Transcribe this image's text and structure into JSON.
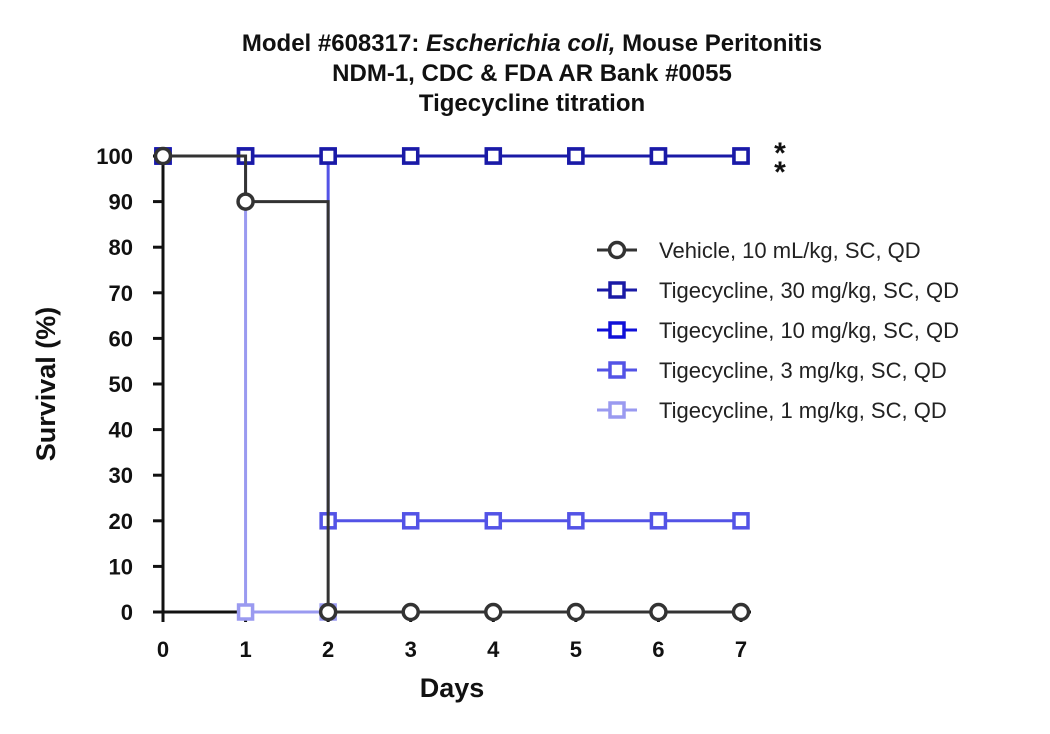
{
  "chart_data": {
    "type": "line",
    "step": true,
    "title": {
      "line1_prefix": "Model #608317: ",
      "line1_italic": "Escherichia coli,",
      "line1_suffix": " Mouse Peritonitis",
      "line2": "NDM-1, CDC & FDA AR Bank #0055",
      "line3": "Tigecycline titration"
    },
    "xlabel": "Days",
    "ylabel": "Survival (%)",
    "xlim": [
      0,
      7
    ],
    "ylim": [
      0,
      100
    ],
    "xticks": [
      0,
      1,
      2,
      3,
      4,
      5,
      6,
      7
    ],
    "yticks": [
      0,
      10,
      20,
      30,
      40,
      50,
      60,
      70,
      80,
      90,
      100
    ],
    "grid": false,
    "legend_position": "right",
    "significance_marks": [
      "*",
      "*"
    ],
    "series": [
      {
        "name": "Vehicle, 10 mL/kg, SC, QD",
        "color": "#333333",
        "marker": "circle",
        "x": [
          0,
          1,
          2,
          3,
          4,
          5,
          6,
          7
        ],
        "y": [
          100,
          90,
          0,
          0,
          0,
          0,
          0,
          0
        ]
      },
      {
        "name": "Tigecycline, 30 mg/kg, SC, QD",
        "color": "#1a1aa6",
        "marker": "square",
        "x": [
          0,
          1,
          2,
          3,
          4,
          5,
          6,
          7
        ],
        "y": [
          100,
          100,
          100,
          100,
          100,
          100,
          100,
          100
        ]
      },
      {
        "name": "Tigecycline, 10 mg/kg, SC, QD",
        "color": "#1010d8",
        "marker": "square",
        "x": [
          0,
          1,
          2,
          3,
          4,
          5,
          6,
          7
        ],
        "y": [
          100,
          100,
          100,
          100,
          100,
          100,
          100,
          100
        ]
      },
      {
        "name": "Tigecycline, 3 mg/kg, SC, QD",
        "color": "#5353e6",
        "marker": "square",
        "x": [
          0,
          1,
          2,
          3,
          4,
          5,
          6,
          7
        ],
        "y": [
          100,
          100,
          20,
          20,
          20,
          20,
          20,
          20
        ]
      },
      {
        "name": "Tigecycline, 1 mg/kg, SC, QD",
        "color": "#9a9af0",
        "marker": "square",
        "x": [
          0,
          1,
          2
        ],
        "y": [
          100,
          0,
          0
        ]
      }
    ]
  }
}
